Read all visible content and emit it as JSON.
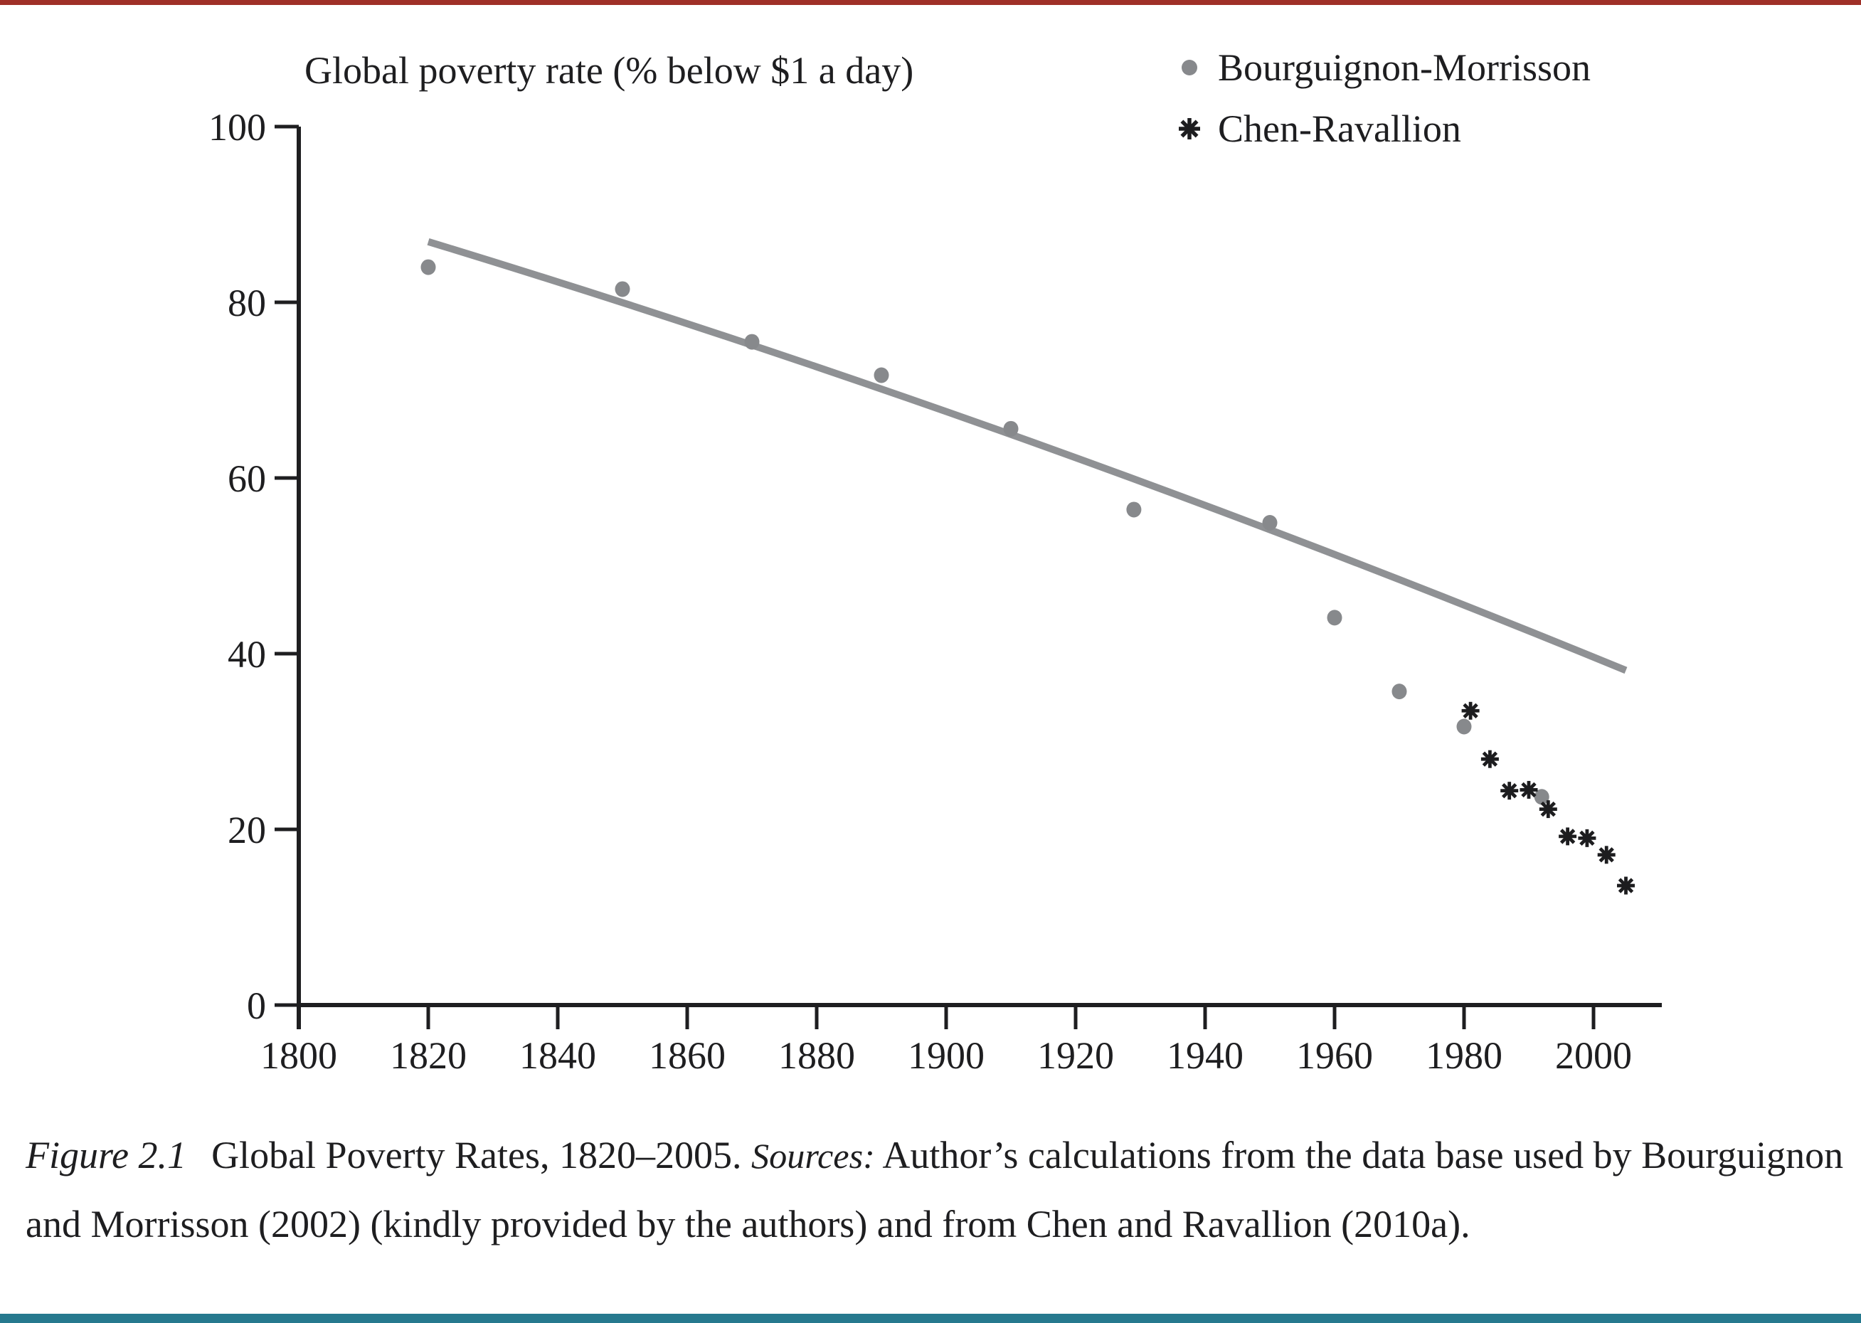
{
  "page": {
    "top_bar_color": "#9f3028",
    "bottom_bar_color": "#26798e",
    "background": "#ffffff",
    "ink_color": "#1e1e20"
  },
  "chart_data": {
    "type": "scatter",
    "title": "Global poverty rate (% below $1 a day)",
    "xlabel": "",
    "ylabel": "",
    "xlim": [
      1800,
      2010
    ],
    "ylim": [
      0,
      100
    ],
    "x_ticks": [
      1800,
      1820,
      1840,
      1860,
      1880,
      1900,
      1920,
      1940,
      1960,
      1980,
      2000
    ],
    "y_ticks": [
      0,
      20,
      40,
      60,
      80,
      100
    ],
    "grid": false,
    "legend_position": "top-right",
    "series": [
      {
        "name": "Bourguignon-Morrisson",
        "marker": "dot",
        "color": "#87898c",
        "points": [
          [
            1820,
            84.0
          ],
          [
            1850,
            81.5
          ],
          [
            1870,
            75.5
          ],
          [
            1890,
            71.7
          ],
          [
            1910,
            65.6
          ],
          [
            1929,
            56.4
          ],
          [
            1950,
            54.9
          ],
          [
            1960,
            44.1
          ],
          [
            1970,
            35.7
          ],
          [
            1980,
            31.7
          ],
          [
            1992,
            23.7
          ]
        ]
      },
      {
        "name": "Chen-Ravallion",
        "marker": "asterisk",
        "color": "#1d1d1f",
        "points": [
          [
            1981,
            33.5
          ],
          [
            1984,
            28.0
          ],
          [
            1987,
            24.4
          ],
          [
            1990,
            24.5
          ],
          [
            1993,
            22.3
          ],
          [
            1996,
            19.2
          ],
          [
            1999,
            19.0
          ],
          [
            2002,
            17.1
          ],
          [
            2005,
            13.6
          ]
        ]
      }
    ],
    "trend_line": {
      "description": "trend of Bourguignon-Morrisson series, slightly convex",
      "color": "#8f9194",
      "start": [
        1820,
        86.9
      ],
      "mid_control": [
        1912.5,
        66.1
      ],
      "end": [
        2005,
        38.1
      ]
    }
  },
  "caption": {
    "parts": [
      {
        "text": "Figure 2.1",
        "style": "figure-label"
      },
      {
        "text": "Global Poverty Rates, 1820–2005. ",
        "style": "normal"
      },
      {
        "text": "Sources:",
        "style": "sources-label"
      },
      {
        "text": " Author’s calculations from the data base used by Bourguignon and Morrisson (2002) (kindly provided by the authors) and from Chen and Ravallion (2010a).",
        "style": "normal"
      }
    ]
  }
}
